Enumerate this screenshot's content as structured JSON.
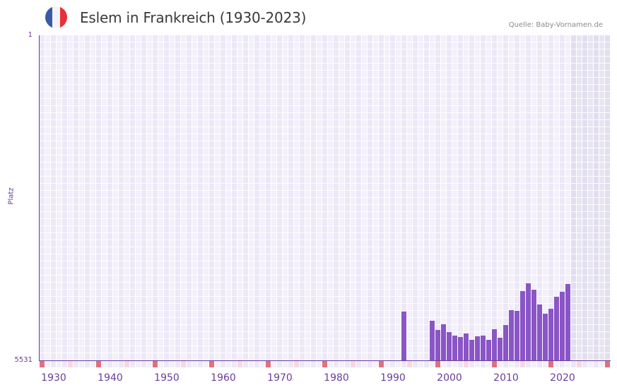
{
  "header": {
    "title": "Eslem in Frankreich (1930-2023)",
    "source": "Quelle: Baby-Vornamen.de",
    "flag_colors": [
      "#3b5aa6",
      "#f4f4f4",
      "#e8303a"
    ]
  },
  "colors": {
    "bar": "#8a55c6",
    "axis": "#6a3d9a",
    "grid_a": "#ece8f7",
    "grid_b": "#f3f0fb",
    "future_a": "#e2def0",
    "future_b": "#e8e5f2",
    "mark_decade": "#e07080",
    "mark_half": "#f5d8e2"
  },
  "chart_data": {
    "type": "bar",
    "title": "Eslem in Frankreich (1930-2023)",
    "xlabel": "",
    "ylabel": "Platz",
    "y_inverted": true,
    "ylim": [
      5531,
      1
    ],
    "yticks": [
      "1",
      "5531"
    ],
    "xlim": [
      1928,
      2028
    ],
    "xticks": [
      "1930",
      "1940",
      "1950",
      "1960",
      "1970",
      "1980",
      "1990",
      "2000",
      "2010",
      "2020"
    ],
    "grid": true,
    "future_shaded_from": 2022,
    "categories": [
      1992,
      1997,
      1998,
      1999,
      2000,
      2001,
      2002,
      2003,
      2004,
      2005,
      2006,
      2007,
      2008,
      2009,
      2010,
      2011,
      2012,
      2013,
      2014,
      2015,
      2016,
      2017,
      2018,
      2019,
      2020,
      2021
    ],
    "values": [
      4701,
      4858,
      5014,
      4918,
      5050,
      5110,
      5134,
      5074,
      5182,
      5122,
      5110,
      5182,
      5002,
      5146,
      4930,
      4677,
      4689,
      4353,
      4221,
      4329,
      4581,
      4738,
      4653,
      4449,
      4365,
      4233
    ]
  }
}
